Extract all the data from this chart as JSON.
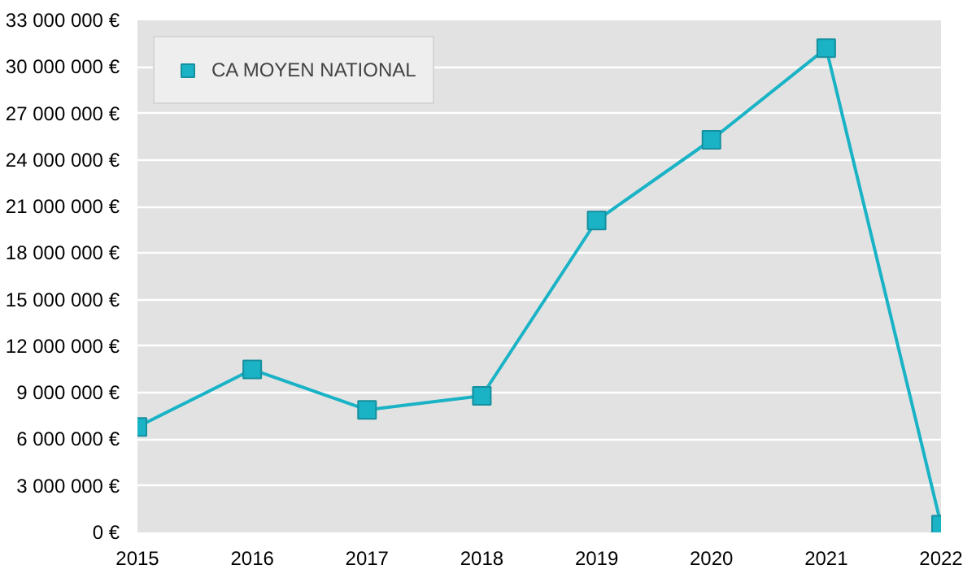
{
  "chart_data": {
    "type": "line",
    "x": [
      2015,
      2016,
      2017,
      2018,
      2019,
      2020,
      2021,
      2022
    ],
    "series": [
      {
        "name": "CA MOYEN NATIONAL",
        "color": "#1ab3c6",
        "values": [
          6800000,
          10500000,
          7900000,
          8800000,
          20100000,
          25300000,
          31200000,
          500000
        ]
      }
    ],
    "xlim": [
      2015,
      2022
    ],
    "xticks": [
      2015,
      2016,
      2017,
      2018,
      2019,
      2020,
      2021,
      2022
    ],
    "ylim": [
      0,
      33000000
    ],
    "yticks": [
      {
        "value": 0,
        "label": "0 €"
      },
      {
        "value": 3000000,
        "label": "3 000 000 €"
      },
      {
        "value": 6000000,
        "label": "6 000 000 €"
      },
      {
        "value": 9000000,
        "label": "9 000 000 €"
      },
      {
        "value": 12000000,
        "label": "12 000 000 €"
      },
      {
        "value": 15000000,
        "label": "15 000 000 €"
      },
      {
        "value": 18000000,
        "label": "18 000 000 €"
      },
      {
        "value": 21000000,
        "label": "21 000 000 €"
      },
      {
        "value": 24000000,
        "label": "24 000 000 €"
      },
      {
        "value": 27000000,
        "label": "27 000 000 €"
      },
      {
        "value": 30000000,
        "label": "30 000 000 €"
      },
      {
        "value": 33000000,
        "label": "33 000 000 €"
      }
    ],
    "grid": "y",
    "legend": "top left",
    "marker": "square",
    "line_style": "solid"
  }
}
